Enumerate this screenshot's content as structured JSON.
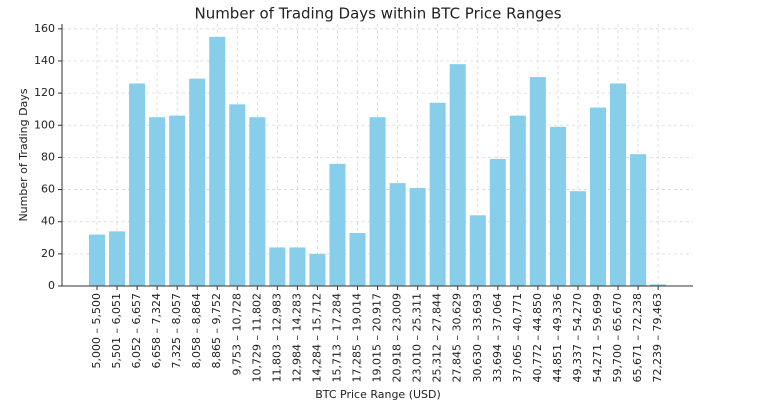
{
  "chart_data": {
    "type": "bar",
    "title": "Number of Trading Days within BTC Price Ranges",
    "x_label": "BTC Price Range (USD)",
    "y_label": "Number of Trading Days",
    "categories": [
      "5,000 – 5,500",
      "5,501 – 6,051",
      "6,052 – 6,657",
      "6,658 – 7,324",
      "7,325 – 8,057",
      "8,058 – 8,864",
      "8,865 – 9,752",
      "9,753 – 10,728",
      "10,729 – 11,802",
      "11,803 – 12,983",
      "12,984 – 14,283",
      "14,284 – 15,712",
      "15,713 – 17,284",
      "17,285 – 19,014",
      "19,015 – 20,917",
      "20,918 – 23,009",
      "23,010 – 25,311",
      "25,312 – 27,844",
      "27,845 – 30,629",
      "30,630 – 33,693",
      "33,694 – 37,064",
      "37,065 – 40,771",
      "40,772 – 44,850",
      "44,851 – 49,336",
      "49,337 – 54,270",
      "54,271 – 59,699",
      "59,700 – 65,670",
      "65,671 – 72,238",
      "72,239 – 79,463"
    ],
    "values": [
      32,
      34,
      126,
      105,
      106,
      129,
      155,
      113,
      105,
      24,
      24,
      20,
      76,
      33,
      105,
      64,
      61,
      114,
      138,
      44,
      79,
      106,
      130,
      99,
      59,
      111,
      126,
      82,
      1
    ],
    "color": "#87ceeb",
    "ylim": [
      0,
      163
    ],
    "yticks": [
      0,
      20,
      40,
      60,
      80,
      100,
      120,
      140,
      160
    ],
    "grid": true
  }
}
